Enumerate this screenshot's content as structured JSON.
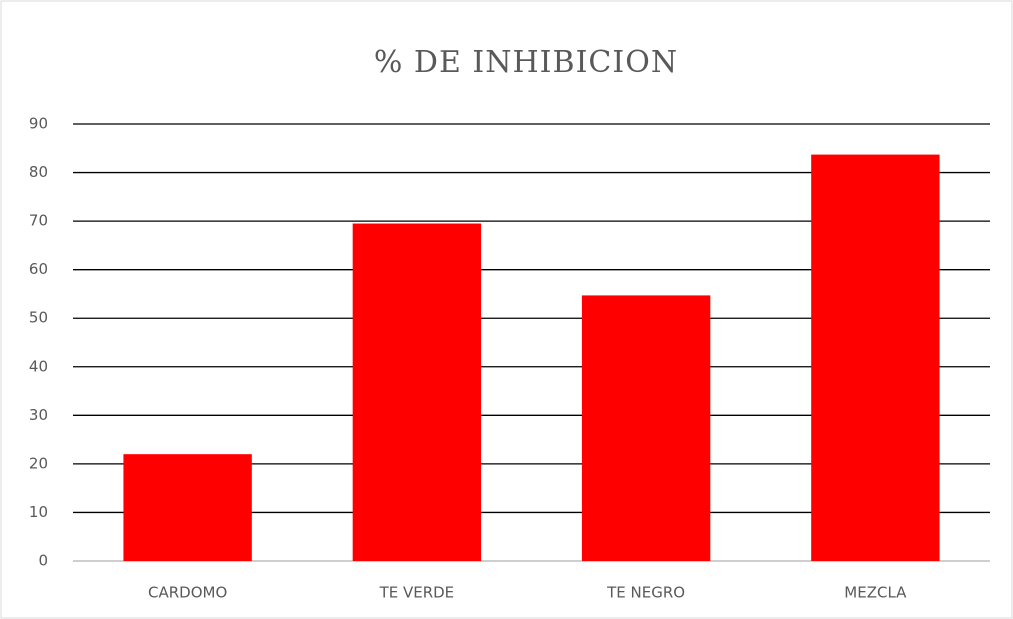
{
  "chart_data": {
    "type": "bar",
    "title": "% DE INHIBICION",
    "categories": [
      "CARDOMO",
      "TE VERDE",
      "TE NEGRO",
      "MEZCLA"
    ],
    "values": [
      22,
      69.5,
      54.7,
      83.7
    ],
    "color": "#ff0000",
    "ylim": [
      0,
      90
    ],
    "yticks": [
      0,
      10,
      20,
      30,
      40,
      50,
      60,
      70,
      80,
      90
    ],
    "grid": true
  }
}
